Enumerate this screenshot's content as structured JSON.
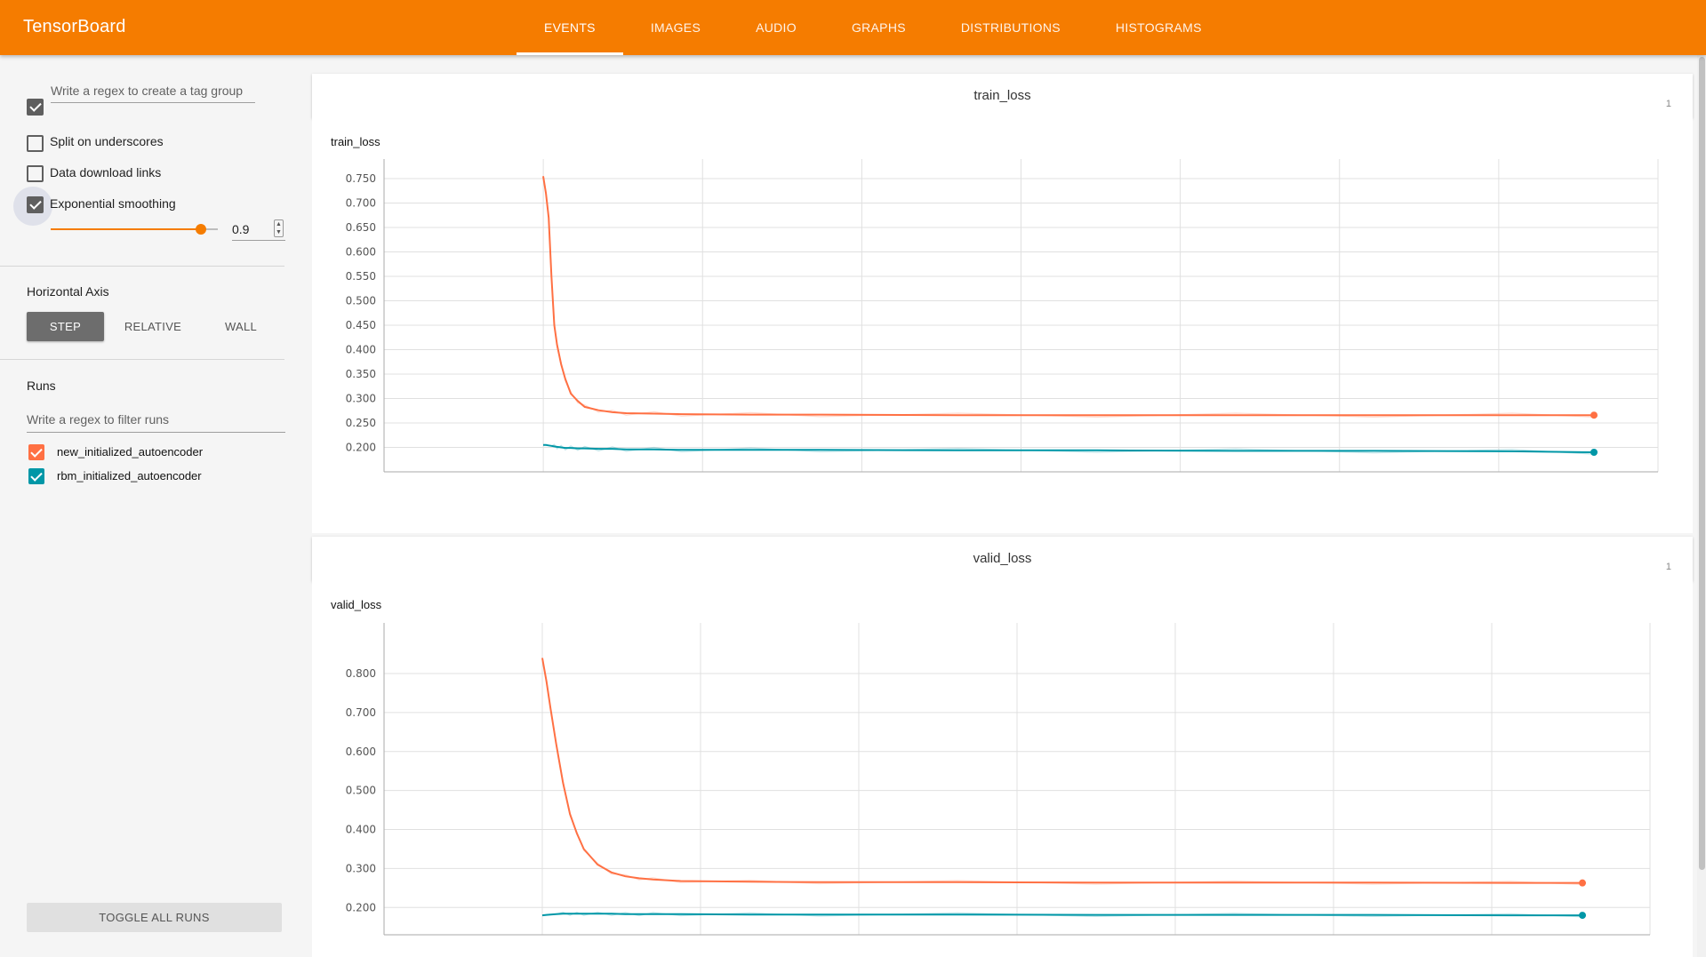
{
  "header": {
    "title": "TensorBoard",
    "tabs": [
      "EVENTS",
      "IMAGES",
      "AUDIO",
      "GRAPHS",
      "DISTRIBUTIONS",
      "HISTOGRAMS"
    ],
    "active_tab": "EVENTS",
    "accent_color": "#f57c00"
  },
  "sidebar": {
    "tag_group_placeholder": "Write a regex to create a tag group",
    "split_label": "Split on underscores",
    "split_checked": false,
    "download_label": "Data download links",
    "download_checked": false,
    "smoothing_label": "Exponential smoothing",
    "smoothing_checked": true,
    "smoothing_value": "0.9",
    "smoothing_fraction": 0.9,
    "axis_label": "Horizontal Axis",
    "axis_options": [
      "STEP",
      "RELATIVE",
      "WALL"
    ],
    "axis_selected": "STEP",
    "runs_label": "Runs",
    "runs_filter_placeholder": "Write a regex to filter runs",
    "runs": [
      {
        "name": "new_initialized_autoencoder",
        "color": "#ff7043",
        "checked": true
      },
      {
        "name": "rbm_initialized_autoencoder",
        "color": "#0097a7",
        "checked": true
      }
    ],
    "toggle_all_label": "TOGGLE ALL RUNS",
    "icons": {
      "collapse_checkbox": "checkbox-icon",
      "stepper": "stepper-icon"
    }
  },
  "panels": [
    {
      "title": "train_loss",
      "count": "1",
      "chart_title": "train_loss"
    },
    {
      "title": "valid_loss",
      "count": "1",
      "chart_title": "valid_loss"
    }
  ],
  "chart_data": [
    {
      "type": "line",
      "title": "train_loss",
      "xlabel": "",
      "ylabel": "",
      "y_ticks": [
        "0.200",
        "0.250",
        "0.300",
        "0.350",
        "0.400",
        "0.450",
        "0.500",
        "0.550",
        "0.600",
        "0.650",
        "0.700",
        "0.750"
      ],
      "ylim": [
        0.15,
        0.79
      ],
      "x": [
        0,
        2,
        4,
        6,
        8,
        10,
        13,
        16,
        20,
        25,
        30,
        40,
        50,
        60,
        80,
        100,
        150,
        200,
        300,
        400,
        500,
        600,
        700,
        759
      ],
      "grid": true,
      "series": [
        {
          "name": "new_initialized_autoencoder",
          "color": "#ff7043",
          "values": [
            0.755,
            0.72,
            0.67,
            0.55,
            0.45,
            0.41,
            0.37,
            0.34,
            0.31,
            0.295,
            0.283,
            0.276,
            0.272,
            0.27,
            0.269,
            0.268,
            0.267,
            0.267,
            0.266,
            0.266,
            0.266,
            0.266,
            0.266,
            0.266
          ]
        },
        {
          "name": "rbm_initialized_autoencoder",
          "color": "#0097a7",
          "values": [
            0.205,
            0.205,
            0.204,
            0.203,
            0.202,
            0.201,
            0.2,
            0.199,
            0.199,
            0.198,
            0.198,
            0.197,
            0.197,
            0.196,
            0.196,
            0.195,
            0.195,
            0.195,
            0.194,
            0.194,
            0.193,
            0.193,
            0.192,
            0.19
          ]
        }
      ]
    },
    {
      "type": "line",
      "title": "valid_loss",
      "xlabel": "",
      "ylabel": "",
      "y_ticks": [
        "0.200",
        "0.300",
        "0.400",
        "0.500",
        "0.600",
        "0.700",
        "0.800"
      ],
      "ylim": [
        0.13,
        0.93
      ],
      "x": [
        0,
        3,
        6,
        10,
        15,
        20,
        25,
        30,
        40,
        50,
        60,
        70,
        80,
        100,
        150,
        200,
        300,
        400,
        500,
        600,
        700,
        752
      ],
      "grid": true,
      "series": [
        {
          "name": "new_initialized_autoencoder",
          "color": "#ff7043",
          "values": [
            0.84,
            0.78,
            0.71,
            0.62,
            0.52,
            0.44,
            0.39,
            0.35,
            0.31,
            0.29,
            0.28,
            0.275,
            0.272,
            0.268,
            0.266,
            0.265,
            0.265,
            0.264,
            0.264,
            0.264,
            0.263,
            0.263
          ]
        },
        {
          "name": "rbm_initialized_autoencoder",
          "color": "#0097a7",
          "values": [
            0.18,
            0.181,
            0.182,
            0.183,
            0.184,
            0.184,
            0.184,
            0.184,
            0.184,
            0.184,
            0.183,
            0.183,
            0.183,
            0.183,
            0.182,
            0.182,
            0.182,
            0.181,
            0.181,
            0.181,
            0.18,
            0.18
          ]
        }
      ]
    }
  ]
}
